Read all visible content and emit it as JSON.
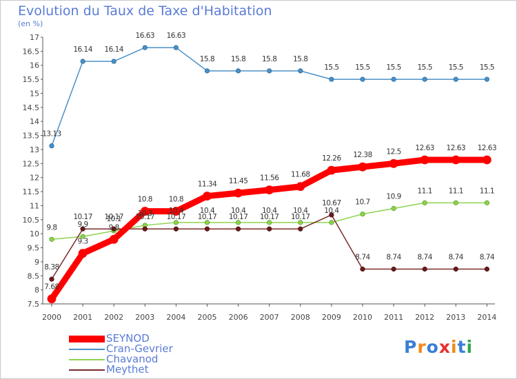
{
  "title": "Evolution du Taux de Taxe d'Habitation",
  "subtitle": "(en %)",
  "logo": {
    "text": "Proxiti",
    "colors": [
      "#3a7fd5",
      "#f08a1a",
      "#3a7fd5",
      "#e83030",
      "#f08a1a",
      "#3a7fd5",
      "#2fa84f"
    ]
  },
  "chart_data": {
    "type": "line",
    "x": [
      "2000",
      "2001",
      "2002",
      "2003",
      "2004",
      "2005",
      "2006",
      "2007",
      "2008",
      "2009",
      "2010",
      "2011",
      "2012",
      "2013",
      "2014"
    ],
    "ylim": [
      7.5,
      17
    ],
    "yticks": [
      "7.5",
      "8",
      "8.5",
      "9",
      "9.5",
      "10",
      "10.5",
      "11",
      "11.5",
      "12",
      "12.5",
      "13",
      "13.5",
      "14",
      "14.5",
      "15",
      "15.5",
      "16",
      "16.5",
      "17"
    ],
    "grid": false,
    "legend_position": "bottom-left",
    "series": [
      {
        "name": "SEYNOD",
        "color": "#ff0000",
        "values": [
          7.68,
          9.3,
          9.8,
          10.8,
          10.8,
          11.34,
          11.45,
          11.56,
          11.68,
          12.26,
          12.38,
          12.5,
          12.63,
          12.63,
          12.63
        ],
        "labels": [
          "7.68",
          "9.3",
          "9.8",
          "10.8",
          "10.8",
          "11.34",
          "11.45",
          "11.56",
          "11.68",
          "12.26",
          "12.38",
          "12.5",
          "12.63",
          "12.63",
          "12.63"
        ]
      },
      {
        "name": "Cran-Gevrier",
        "color": "#4a90c8",
        "values": [
          13.13,
          16.14,
          16.14,
          16.63,
          16.63,
          15.8,
          15.8,
          15.8,
          15.8,
          15.5,
          15.5,
          15.5,
          15.5,
          15.5,
          15.5
        ],
        "labels": [
          "13.13",
          "16.14",
          "16.14",
          "16.63",
          "16.63",
          "15.8",
          "15.8",
          "15.8",
          "15.8",
          "15.5",
          "15.5",
          "15.5",
          "15.5",
          "15.5",
          "15.5"
        ]
      },
      {
        "name": "Chavanod",
        "color": "#8ed34f",
        "values": [
          9.8,
          9.9,
          10.1,
          10.3,
          10.4,
          10.4,
          10.4,
          10.4,
          10.4,
          10.4,
          10.7,
          10.9,
          11.1,
          11.1,
          11.1
        ],
        "labels": [
          "9.8",
          "9.9",
          "10.1",
          "10.3",
          "10.4",
          "10.4",
          "10.4",
          "10.4",
          "10.4",
          "10.4",
          "10.7",
          "10.9",
          "11.1",
          "11.1",
          "11.1"
        ]
      },
      {
        "name": "Meythet",
        "color": "#7a2a2a",
        "values": [
          8.38,
          10.17,
          10.17,
          10.17,
          10.17,
          10.17,
          10.17,
          10.17,
          10.17,
          10.67,
          8.74,
          8.74,
          8.74,
          8.74,
          8.74
        ],
        "labels": [
          "8.38",
          "10.17",
          "10.17",
          "10.17",
          "10.17",
          "10.17",
          "10.17",
          "10.17",
          "10.17",
          "10.67",
          "8.74",
          "8.74",
          "8.74",
          "8.74",
          "8.74"
        ]
      }
    ]
  }
}
